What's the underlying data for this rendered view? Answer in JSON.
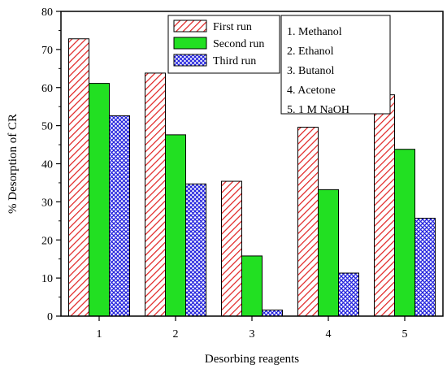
{
  "chart_data": {
    "type": "bar",
    "title": "",
    "xlabel": "Desorbing reagents",
    "ylabel": "% Desorption of CR",
    "categories": [
      "1",
      "2",
      "3",
      "4",
      "5"
    ],
    "ylim": [
      0,
      80
    ],
    "yticks": [
      0,
      10,
      20,
      30,
      40,
      50,
      60,
      70,
      80
    ],
    "grid": false,
    "legend_position": "top-center",
    "series": [
      {
        "name": "First run",
        "values": [
          72.8,
          63.8,
          35.4,
          49.6,
          58.1
        ],
        "color": "#e02020",
        "pattern": "diagonal-hatch"
      },
      {
        "name": "Second run",
        "values": [
          61.1,
          47.6,
          15.8,
          33.2,
          43.8
        ],
        "color": "#22e022",
        "pattern": "solid"
      },
      {
        "name": "Third run",
        "values": [
          52.6,
          34.7,
          1.6,
          11.3,
          25.7
        ],
        "color": "#2222dd",
        "pattern": "cross-hatch"
      }
    ],
    "annotations": {
      "position": "top-right",
      "lines": [
        "1. Methanol",
        "2. Ethanol",
        "3. Butanol",
        "4. Acetone",
        "5. 1 M NaOH"
      ]
    }
  }
}
